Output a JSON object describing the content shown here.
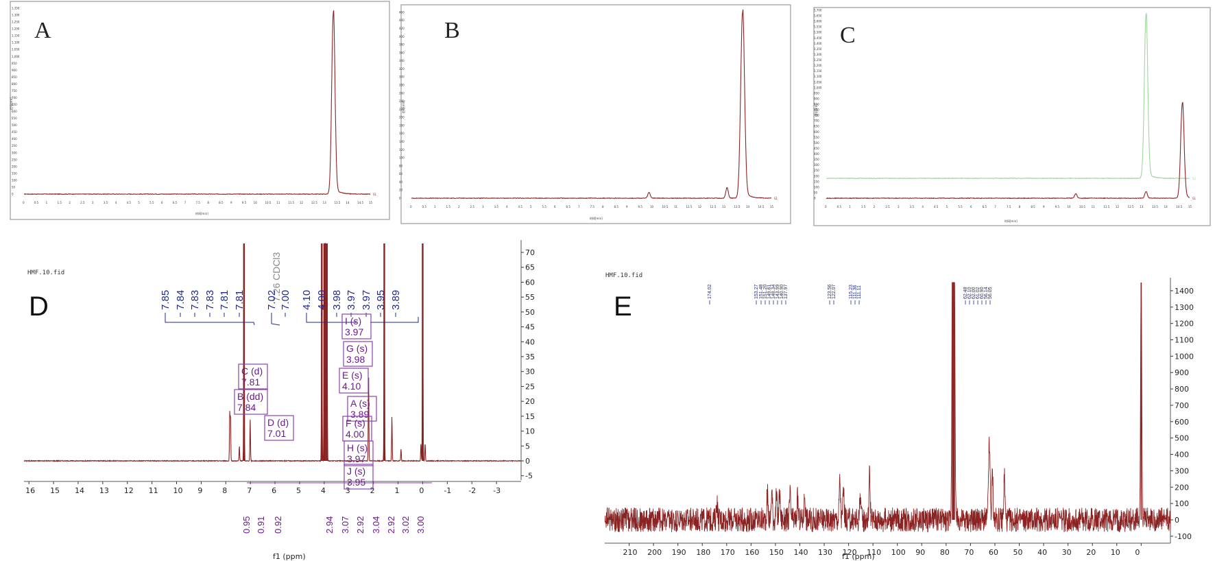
{
  "colors": {
    "trace_red": "#8b2323",
    "trace_green": "#9fd49f",
    "label_blue": "#1f2a8a",
    "box_purple": "#8a3fb0",
    "solvent_grey": "#888888"
  },
  "chart_data": [
    {
      "id": "A",
      "type": "line",
      "panel_letter": "A",
      "xlabel": "时间[min]",
      "ylabel": "信号[mV]",
      "xlim": [
        0,
        15
      ],
      "x_ticks": [
        "0",
        "0.5",
        "1",
        "1.5",
        "2",
        "2.5",
        "3",
        "3.5",
        "4",
        "4.5",
        "5",
        "5.5",
        "6",
        "6.5",
        "7",
        "7.5",
        "8",
        "8.5",
        "9",
        "9.5",
        "10",
        "10.5",
        "11",
        "11.5",
        "12",
        "12.5",
        "13",
        "13.5",
        "14",
        "14.5",
        "15"
      ],
      "y_ticks": [
        "0",
        "50",
        "100",
        "150",
        "200",
        "250",
        "300",
        "350",
        "400",
        "450",
        "500",
        "550",
        "600",
        "650",
        "700",
        "750",
        "800",
        "850",
        "900",
        "950",
        "1,000",
        "1,050",
        "1,100",
        "1,150",
        "1,200",
        "1,250",
        "1,300",
        "1,350"
      ],
      "ylim": [
        0,
        1350
      ],
      "series": [
        {
          "name": "S1",
          "peaks": [
            {
              "x": 13.4,
              "height": 1320,
              "width": 0.07
            }
          ],
          "baseline": 0
        }
      ]
    },
    {
      "id": "B",
      "type": "line",
      "panel_letter": "B",
      "xlabel": "时间[min]",
      "ylabel": "信号[mV]",
      "xlim": [
        0,
        15
      ],
      "x_ticks": [
        "0",
        "0.5",
        "1",
        "1.5",
        "2",
        "2.5",
        "3",
        "3.5",
        "4",
        "4.5",
        "5",
        "5.5",
        "6",
        "6.5",
        "7",
        "7.5",
        "8",
        "8.5",
        "9",
        "9.5",
        "10",
        "10.5",
        "11",
        "11.5",
        "12",
        "12.5",
        "13",
        "13.5",
        "14",
        "14.5",
        "15"
      ],
      "y_ticks": [
        "0",
        "20",
        "40",
        "60",
        "80",
        "100",
        "120",
        "140",
        "160",
        "180",
        "200",
        "220",
        "240",
        "260",
        "280",
        "300",
        "320",
        "340",
        "360",
        "380",
        "400",
        "420",
        "440",
        "460"
      ],
      "ylim": [
        0,
        470
      ],
      "series": [
        {
          "name": "S1",
          "peaks": [
            {
              "x": 9.9,
              "height": 14,
              "width": 0.05
            },
            {
              "x": 13.15,
              "height": 26,
              "width": 0.05
            },
            {
              "x": 13.8,
              "height": 460,
              "width": 0.08
            }
          ],
          "baseline": 0
        }
      ]
    },
    {
      "id": "C",
      "type": "line",
      "panel_letter": "C",
      "xlabel": "时间[min]",
      "ylabel": "信号[mV]",
      "xlim": [
        0,
        15
      ],
      "x_ticks": [
        "0",
        "0.5",
        "1",
        "1.5",
        "2",
        "2.5",
        "3",
        "3.5",
        "4",
        "4.5",
        "5",
        "5.5",
        "6",
        "6.5",
        "7",
        "7.5",
        "8",
        "8.5",
        "9",
        "9.5",
        "10",
        "10.5",
        "11",
        "11.5",
        "12",
        "12.5",
        "13",
        "13.5",
        "14",
        "14.5",
        "15"
      ],
      "y_ticks": [
        "0",
        "50",
        "100",
        "150",
        "200",
        "250",
        "300",
        "350",
        "400",
        "450",
        "500",
        "550",
        "600",
        "650",
        "700",
        "750",
        "800",
        "850",
        "900",
        "950",
        "1,000",
        "1,050",
        "1,100",
        "1,150",
        "1,200",
        "1,250",
        "1,300",
        "1,350",
        "1,400",
        "1,450",
        "1,500",
        "1,550",
        "1,600",
        "1,650",
        "1,700"
      ],
      "ylim": [
        0,
        1700
      ],
      "series": [
        {
          "name": "S2",
          "color": "#9fd49f",
          "baseline": 180,
          "peaks": [
            {
              "x": 13.2,
              "height": 1480,
              "width": 0.07
            }
          ]
        },
        {
          "name": "S1",
          "color": "#8b2323",
          "baseline": 0,
          "peaks": [
            {
              "x": 10.3,
              "height": 40,
              "width": 0.05
            },
            {
              "x": 13.2,
              "height": 60,
              "width": 0.05
            },
            {
              "x": 14.7,
              "height": 860,
              "width": 0.07
            }
          ]
        }
      ]
    },
    {
      "id": "D",
      "type": "line",
      "panel_letter": "D",
      "header": "HMF.10.fid",
      "xlabel": "f1 (ppm)",
      "xlim": [
        16.2,
        -4
      ],
      "x_ticks": [
        "16",
        "15",
        "14",
        "13",
        "12",
        "11",
        "10",
        "9",
        "8",
        "7",
        "6",
        "5",
        "4",
        "3",
        "2",
        "1",
        "0",
        "-1",
        "-2",
        "-3"
      ],
      "y_ticks": [
        "-5",
        "0",
        "5",
        "10",
        "15",
        "20",
        "25",
        "30",
        "35",
        "40",
        "45",
        "50",
        "55",
        "60",
        "65",
        "70"
      ],
      "ylim": [
        -6,
        73
      ],
      "solvent_label": "7.26 CDCl3",
      "peak_labels": [
        "7.85",
        "7.84",
        "7.83",
        "7.83",
        "7.81",
        "7.81",
        "7.02",
        "7.00",
        "4.10",
        "4.00",
        "3.98",
        "3.97",
        "3.97",
        "3.95",
        "3.89"
      ],
      "multiplets": [
        {
          "label": "I (s)",
          "value": "3.97"
        },
        {
          "label": "G (s)",
          "value": "3.98"
        },
        {
          "label": "C (d)",
          "value": "7.81"
        },
        {
          "label": "E (s)",
          "value": "4.10"
        },
        {
          "label": "B (dd)",
          "value": "7.84"
        },
        {
          "label": "A (s)",
          "value": "3.89"
        },
        {
          "label": "D (d)",
          "value": "7.01"
        },
        {
          "label": "F (s)",
          "value": "4.00"
        },
        {
          "label": "H (s)",
          "value": "3.97"
        },
        {
          "label": "J (s)",
          "value": "3.95"
        }
      ],
      "integrals": [
        "0.95",
        "0.91",
        "0.92",
        "2.94",
        "3.07",
        "2.92",
        "3.04",
        "2.92",
        "3.02",
        "3.00"
      ],
      "peaks": [
        {
          "x": 7.84,
          "height": 16
        },
        {
          "x": 7.81,
          "height": 15
        },
        {
          "x": 7.45,
          "height": 5
        },
        {
          "x": 7.26,
          "height": 73
        },
        {
          "x": 7.01,
          "height": 14
        },
        {
          "x": 4.1,
          "height": 73
        },
        {
          "x": 4.0,
          "height": 73
        },
        {
          "x": 3.97,
          "height": 73
        },
        {
          "x": 3.95,
          "height": 73
        },
        {
          "x": 3.89,
          "height": 73
        },
        {
          "x": 2.2,
          "height": 31
        },
        {
          "x": 1.56,
          "height": 73
        },
        {
          "x": 1.25,
          "height": 15
        },
        {
          "x": 0.88,
          "height": 4
        },
        {
          "x": 0.07,
          "height": 6
        },
        {
          "x": 0.0,
          "height": 73
        },
        {
          "x": -0.1,
          "height": 6
        }
      ]
    },
    {
      "id": "E",
      "type": "line",
      "panel_letter": "E",
      "header": "HMF.10.fid",
      "xlabel": "f1 (ppm)",
      "xlim": [
        220,
        -12
      ],
      "x_ticks": [
        "210",
        "200",
        "190",
        "180",
        "170",
        "160",
        "150",
        "140",
        "130",
        "120",
        "110",
        "100",
        "90",
        "80",
        "70",
        "60",
        "50",
        "40",
        "30",
        "20",
        "10",
        "0"
      ],
      "y_ticks": [
        "-100",
        "0",
        "100",
        "200",
        "300",
        "400",
        "500",
        "600",
        "700",
        "800",
        "900",
        "1000",
        "1100",
        "1200",
        "1300",
        "1400"
      ],
      "ylim": [
        -180,
        1450
      ],
      "peak_labels": [
        "174.02",
        "153.27",
        "151.48",
        "151.20",
        "149.61",
        "148.34",
        "143.99",
        "140.90",
        "137.97",
        "123.56",
        "122.07",
        "115.23",
        "111.36",
        "111.11",
        "62.48",
        "62.10",
        "62.00",
        "61.02",
        "60.90",
        "56.14",
        "56.05"
      ],
      "peaks": [
        {
          "x": 174.0,
          "height": 120
        },
        {
          "x": 153.3,
          "height": 160
        },
        {
          "x": 151.5,
          "height": 180
        },
        {
          "x": 149.6,
          "height": 140
        },
        {
          "x": 148.3,
          "height": 170
        },
        {
          "x": 144.0,
          "height": 150
        },
        {
          "x": 140.9,
          "height": 130
        },
        {
          "x": 138.0,
          "height": 160
        },
        {
          "x": 123.6,
          "height": 240
        },
        {
          "x": 122.1,
          "height": 190
        },
        {
          "x": 115.2,
          "height": 170
        },
        {
          "x": 111.4,
          "height": 280
        },
        {
          "x": 77.4,
          "height": 1450
        },
        {
          "x": 77.0,
          "height": 1450
        },
        {
          "x": 76.6,
          "height": 1450
        },
        {
          "x": 62.5,
          "height": 300
        },
        {
          "x": 62.1,
          "height": 310
        },
        {
          "x": 61.0,
          "height": 290
        },
        {
          "x": 56.1,
          "height": 270
        },
        {
          "x": 0.0,
          "height": 1450
        }
      ]
    }
  ]
}
